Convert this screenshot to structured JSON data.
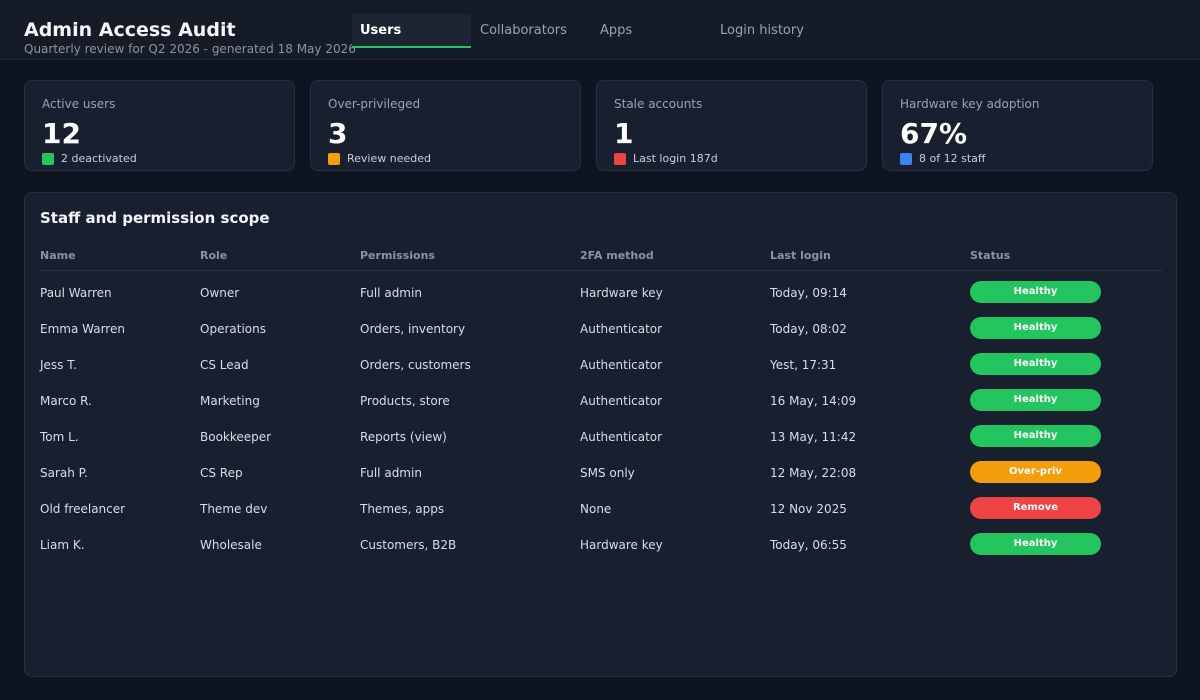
{
  "header": {
    "title": "Admin Access Audit",
    "subtitle": "Quarterly review for Q2 2026 - generated 18 May 2026"
  },
  "tabs": [
    {
      "label": "Users",
      "active": true
    },
    {
      "label": "Collaborators",
      "active": false
    },
    {
      "label": "Apps",
      "active": false
    },
    {
      "label": "Login history",
      "active": false
    }
  ],
  "stats": [
    {
      "label": "Active users",
      "value": "12",
      "note": "2 deactivated",
      "color": "#22c55e"
    },
    {
      "label": "Over-privileged",
      "value": "3",
      "note": "Review needed",
      "color": "#f59e0b"
    },
    {
      "label": "Stale accounts",
      "value": "1",
      "note": "Last login 187d",
      "color": "#ef4444"
    },
    {
      "label": "Hardware key adoption",
      "value": "67%",
      "note": "8 of 12 staff",
      "color": "#3b82f6"
    }
  ],
  "table": {
    "title": "Staff and permission scope",
    "columns": [
      "Name",
      "Role",
      "Permissions",
      "2FA method",
      "Last login",
      "Status"
    ],
    "rows": [
      {
        "name": "Paul Warren",
        "role": "Owner",
        "permissions": "Full admin",
        "twofa": "Hardware key",
        "last_login": "Today, 09:14",
        "status": "Healthy",
        "status_color": "#22c55e"
      },
      {
        "name": "Emma Warren",
        "role": "Operations",
        "permissions": "Orders, inventory",
        "twofa": "Authenticator",
        "last_login": "Today, 08:02",
        "status": "Healthy",
        "status_color": "#22c55e"
      },
      {
        "name": "Jess T.",
        "role": "CS Lead",
        "permissions": "Orders, customers",
        "twofa": "Authenticator",
        "last_login": "Yest, 17:31",
        "status": "Healthy",
        "status_color": "#22c55e"
      },
      {
        "name": "Marco R.",
        "role": "Marketing",
        "permissions": "Products, store",
        "twofa": "Authenticator",
        "last_login": "16 May, 14:09",
        "status": "Healthy",
        "status_color": "#22c55e"
      },
      {
        "name": "Tom L.",
        "role": "Bookkeeper",
        "permissions": "Reports (view)",
        "twofa": "Authenticator",
        "last_login": "13 May, 11:42",
        "status": "Healthy",
        "status_color": "#22c55e"
      },
      {
        "name": "Sarah P.",
        "role": "CS Rep",
        "permissions": "Full admin",
        "twofa": "SMS only",
        "last_login": "12 May, 22:08",
        "status": "Over-priv",
        "status_color": "#f59e0b"
      },
      {
        "name": "Old freelancer",
        "role": "Theme dev",
        "permissions": "Themes, apps",
        "twofa": "None",
        "last_login": "12 Nov 2025",
        "status": "Remove",
        "status_color": "#ef4444"
      },
      {
        "name": "Liam K.",
        "role": "Wholesale",
        "permissions": "Customers, B2B",
        "twofa": "Hardware key",
        "last_login": "Today, 06:55",
        "status": "Healthy",
        "status_color": "#22c55e"
      }
    ]
  }
}
